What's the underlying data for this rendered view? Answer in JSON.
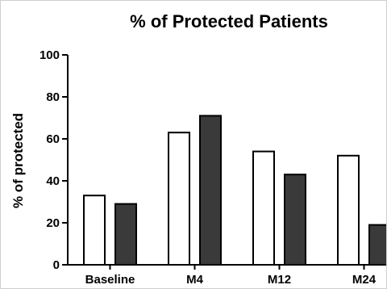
{
  "chart_data": {
    "type": "bar",
    "title": "% of Protected Patients",
    "xlabel": "",
    "ylabel": "% of protected",
    "categories": [
      "Baseline",
      "M4",
      "M12",
      "M24"
    ],
    "series": [
      {
        "values": [
          33,
          63,
          54,
          52
        ],
        "color": "#ffffff"
      },
      {
        "values": [
          29,
          71,
          43,
          19
        ],
        "color": "#3a3a3a"
      }
    ],
    "ylim": [
      0,
      100
    ],
    "yticks": [
      0,
      20,
      40,
      60,
      80,
      100
    ],
    "grid": false,
    "legend": "none",
    "bar_outline": "#000000"
  }
}
